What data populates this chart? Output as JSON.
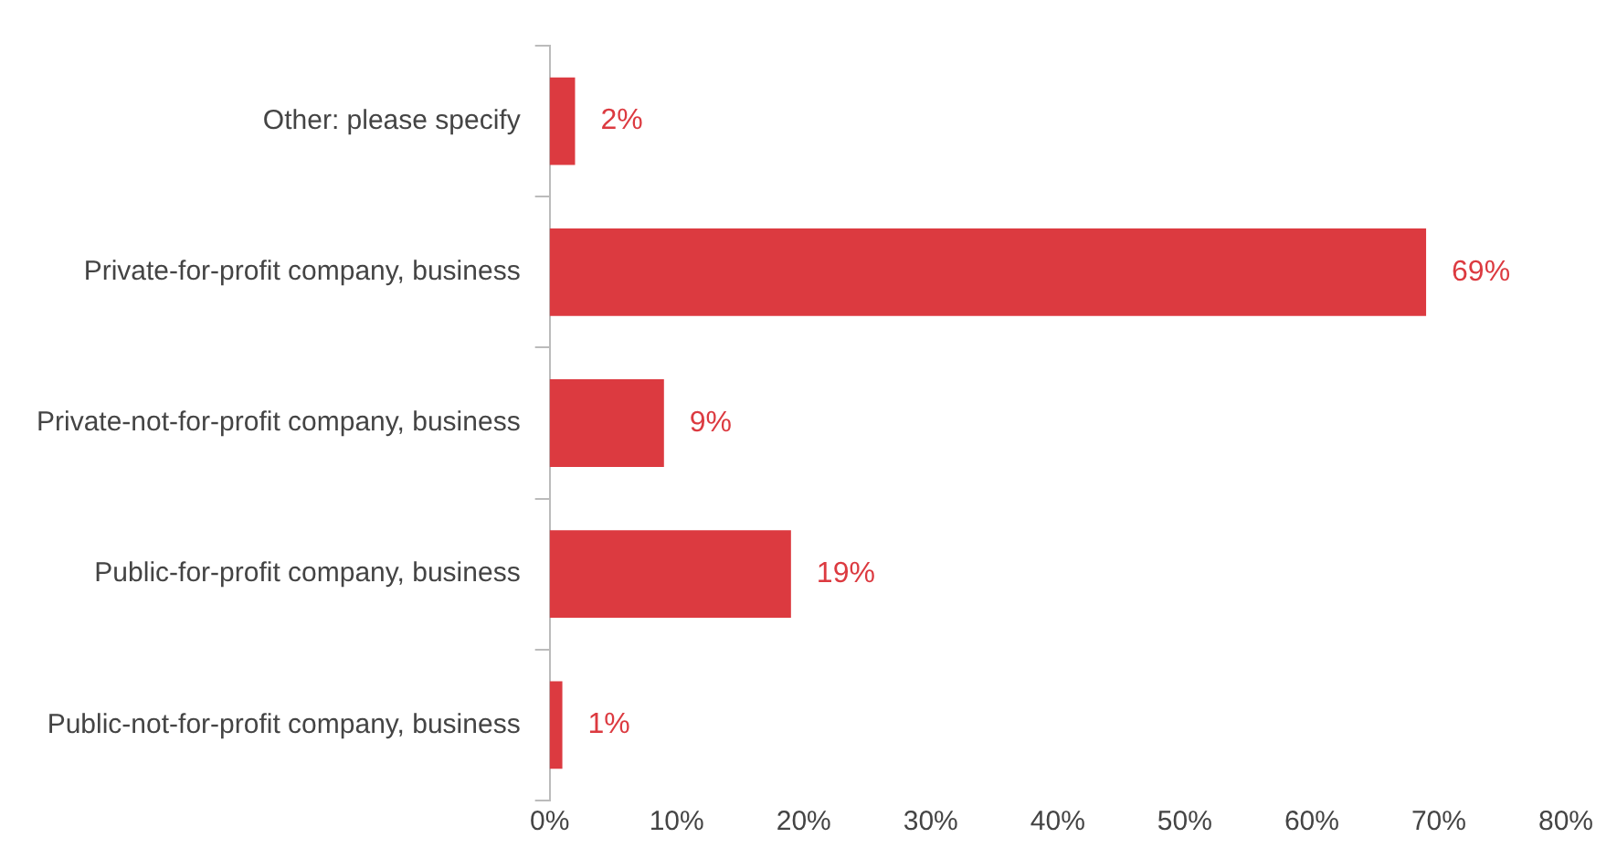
{
  "chart_data": {
    "type": "bar",
    "orientation": "horizontal",
    "categories": [
      "Other: please specify",
      "Private-for-profit company, business",
      "Private-not-for-profit company, business",
      "Public-for-profit company, business",
      "Public-not-for-profit company, business"
    ],
    "values": [
      2,
      69,
      9,
      19,
      1
    ],
    "value_labels": [
      "2%",
      "69%",
      "9%",
      "19%",
      "1%"
    ],
    "color": "#dc3a40",
    "xlim": [
      0,
      80
    ],
    "xticks": [
      {
        "value": 0,
        "label": "0%"
      },
      {
        "value": 10,
        "label": "10%"
      },
      {
        "value": 20,
        "label": "20%"
      },
      {
        "value": 30,
        "label": "30%"
      },
      {
        "value": 40,
        "label": "40%"
      },
      {
        "value": 50,
        "label": "50%"
      },
      {
        "value": 60,
        "label": "60%"
      },
      {
        "value": 70,
        "label": "70%"
      },
      {
        "value": 80,
        "label": "80%"
      }
    ]
  }
}
